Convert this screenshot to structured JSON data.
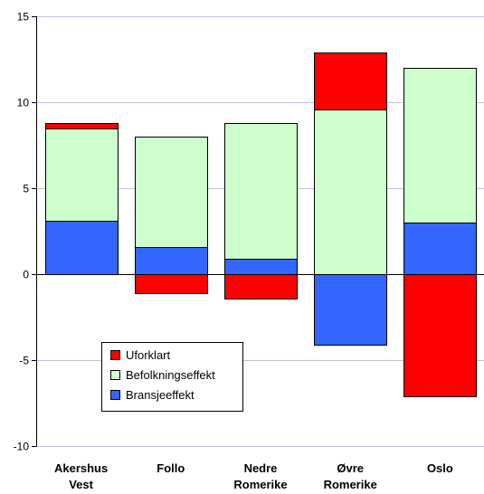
{
  "chart_data": {
    "type": "bar",
    "stacked": true,
    "categories": [
      [
        "Akershus",
        "Vest"
      ],
      [
        "Follo"
      ],
      [
        "Nedre",
        "Romerike"
      ],
      [
        "Øvre",
        "Romerike"
      ],
      [
        "Oslo"
      ]
    ],
    "series": [
      {
        "name": "Bransjeeffekt",
        "color": "#3366ff",
        "values": [
          3.1,
          1.6,
          0.9,
          -4.1,
          3.0
        ]
      },
      {
        "name": "Befolkningseffekt",
        "color": "#ccffcc",
        "values": [
          5.4,
          6.4,
          7.9,
          9.6,
          9.0
        ]
      },
      {
        "name": "Uforklart",
        "color": "#ff0000",
        "values": [
          0.3,
          -1.1,
          -1.4,
          3.3,
          -7.1
        ]
      }
    ],
    "legend_order": [
      "Uforklart",
      "Befolkningseffekt",
      "Bransjeeffekt"
    ],
    "legend_position": "bottom-left",
    "ylim": [
      -10,
      15
    ],
    "yticks": [
      -10,
      -5,
      0,
      5,
      10,
      15
    ],
    "grid": true,
    "gridline_color": "#c0c0e0"
  }
}
